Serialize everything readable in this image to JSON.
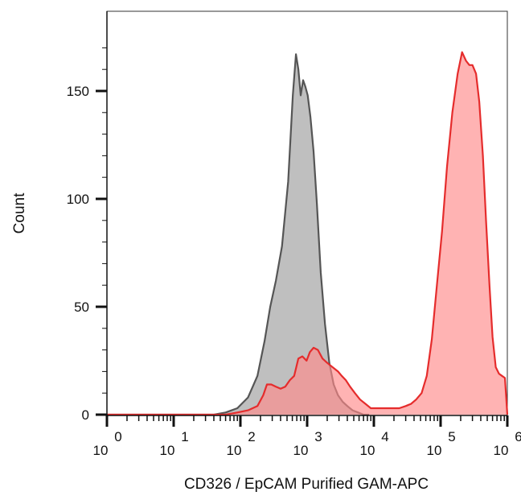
{
  "chart_data": {
    "type": "area",
    "title": "",
    "xlabel": "CD326 / EpCAM Purified GAM-APC",
    "ylabel": "Count",
    "xscale": "log",
    "xlim": [
      1,
      1000000
    ],
    "ylim": [
      0,
      170
    ],
    "grid": false,
    "legend": "none",
    "y_ticks": [
      0,
      50,
      100,
      150
    ],
    "x_ticks": [
      {
        "base": "10",
        "exp": "0",
        "value": 1
      },
      {
        "base": "10",
        "exp": "1",
        "value": 10
      },
      {
        "base": "10",
        "exp": "2",
        "value": 100
      },
      {
        "base": "10",
        "exp": "3",
        "value": 1000
      },
      {
        "base": "10",
        "exp": "4",
        "value": 10000
      },
      {
        "base": "10",
        "exp": "5",
        "value": 100000
      },
      {
        "base": "10",
        "exp": "6",
        "value": 1000000
      }
    ],
    "series": [
      {
        "fill": "#bfbfbf",
        "stroke": "#555555",
        "x": [
          1,
          10,
          40,
          60,
          90,
          130,
          180,
          230,
          280,
          340,
          420,
          520,
          610,
          680,
          740,
          800,
          870,
          940,
          1020,
          1120,
          1250,
          1400,
          1600,
          1850,
          2150,
          2500,
          2900,
          3400,
          4000,
          4800,
          5800,
          7000,
          8500
        ],
        "y": [
          0,
          0,
          0,
          1,
          3,
          8,
          18,
          34,
          50,
          62,
          78,
          108,
          148,
          167,
          160,
          148,
          155,
          152,
          148,
          138,
          122,
          98,
          66,
          42,
          24,
          14,
          9,
          6,
          4,
          2,
          1,
          0,
          0
        ]
      },
      {
        "fill": "#ff8a8a",
        "stroke": "#e52c2c",
        "fill_opacity": 0.65,
        "x": [
          1,
          10,
          40,
          60,
          90,
          130,
          180,
          220,
          250,
          290,
          340,
          400,
          470,
          550,
          640,
          740,
          850,
          980,
          1100,
          1250,
          1450,
          1700,
          2000,
          2400,
          2900,
          3300,
          3800,
          4400,
          5200,
          6200,
          7500,
          9000,
          11000,
          14000,
          18000,
          24000,
          30000,
          36000,
          43000,
          52000,
          62000,
          74000,
          88000,
          105000,
          125000,
          150000,
          180000,
          210000,
          240000,
          270000,
          300000,
          340000,
          380000,
          430000,
          480000,
          540000,
          600000,
          670000,
          750000,
          830000,
          920000,
          1000000
        ],
        "y": [
          0,
          0,
          0,
          0,
          1,
          2,
          4,
          9,
          14,
          14,
          13,
          12,
          13,
          16,
          18,
          26,
          27,
          25,
          29,
          31,
          30,
          26,
          24,
          22,
          20,
          18,
          16,
          13,
          10,
          7,
          5,
          3,
          3,
          3,
          3,
          3,
          4,
          5,
          7,
          10,
          18,
          35,
          60,
          85,
          115,
          140,
          158,
          168,
          164,
          162,
          162,
          158,
          145,
          120,
          90,
          60,
          36,
          22,
          19,
          18,
          17,
          0
        ]
      }
    ]
  }
}
